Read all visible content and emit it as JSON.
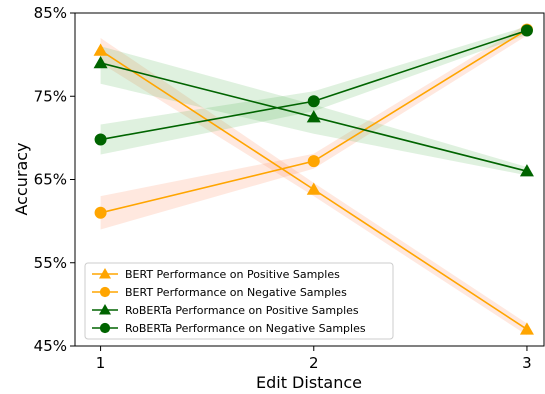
{
  "chart_data": {
    "type": "line",
    "title": "",
    "xlabel": "Edit Distance",
    "ylabel": "Accuracy",
    "x": [
      1,
      2,
      3
    ],
    "x_tick_labels": [
      "1",
      "2",
      "3"
    ],
    "xlim": [
      0.88,
      3.08
    ],
    "ylim": [
      45,
      85
    ],
    "y_ticks": [
      45,
      55,
      65,
      75,
      85
    ],
    "y_tick_labels": [
      "45%",
      "55%",
      "65%",
      "75%",
      "85%"
    ],
    "grid": false,
    "legend_position": "lower-left",
    "series": [
      {
        "name": "BERT Performance on Positive Samples",
        "values": [
          80.5,
          63.8,
          47.0
        ],
        "band_lower": [
          79.0,
          63.0,
          46.3
        ],
        "band_upper": [
          82.0,
          64.6,
          47.7
        ],
        "color": "#FFA500",
        "band_color": "#FF7F50",
        "marker": "triangle"
      },
      {
        "name": "BERT Performance on Negative Samples",
        "values": [
          61.0,
          67.2,
          83.0
        ],
        "band_lower": [
          59.0,
          66.3,
          82.3
        ],
        "band_upper": [
          63.0,
          68.1,
          83.7
        ],
        "color": "#FFA500",
        "band_color": "#FF7F50",
        "marker": "circle"
      },
      {
        "name": "RoBERTa Performance on Positive Samples",
        "values": [
          79.0,
          72.5,
          66.0
        ],
        "band_lower": [
          76.5,
          70.5,
          65.5
        ],
        "band_upper": [
          81.0,
          74.0,
          66.5
        ],
        "color": "#006400",
        "band_color": "#4CAF50",
        "marker": "triangle"
      },
      {
        "name": "RoBERTa Performance on Negative Samples",
        "values": [
          69.8,
          74.4,
          82.9
        ],
        "band_lower": [
          68.0,
          73.2,
          82.4
        ],
        "band_upper": [
          71.6,
          75.6,
          83.4
        ],
        "color": "#006400",
        "band_color": "#4CAF50",
        "marker": "circle"
      }
    ]
  }
}
